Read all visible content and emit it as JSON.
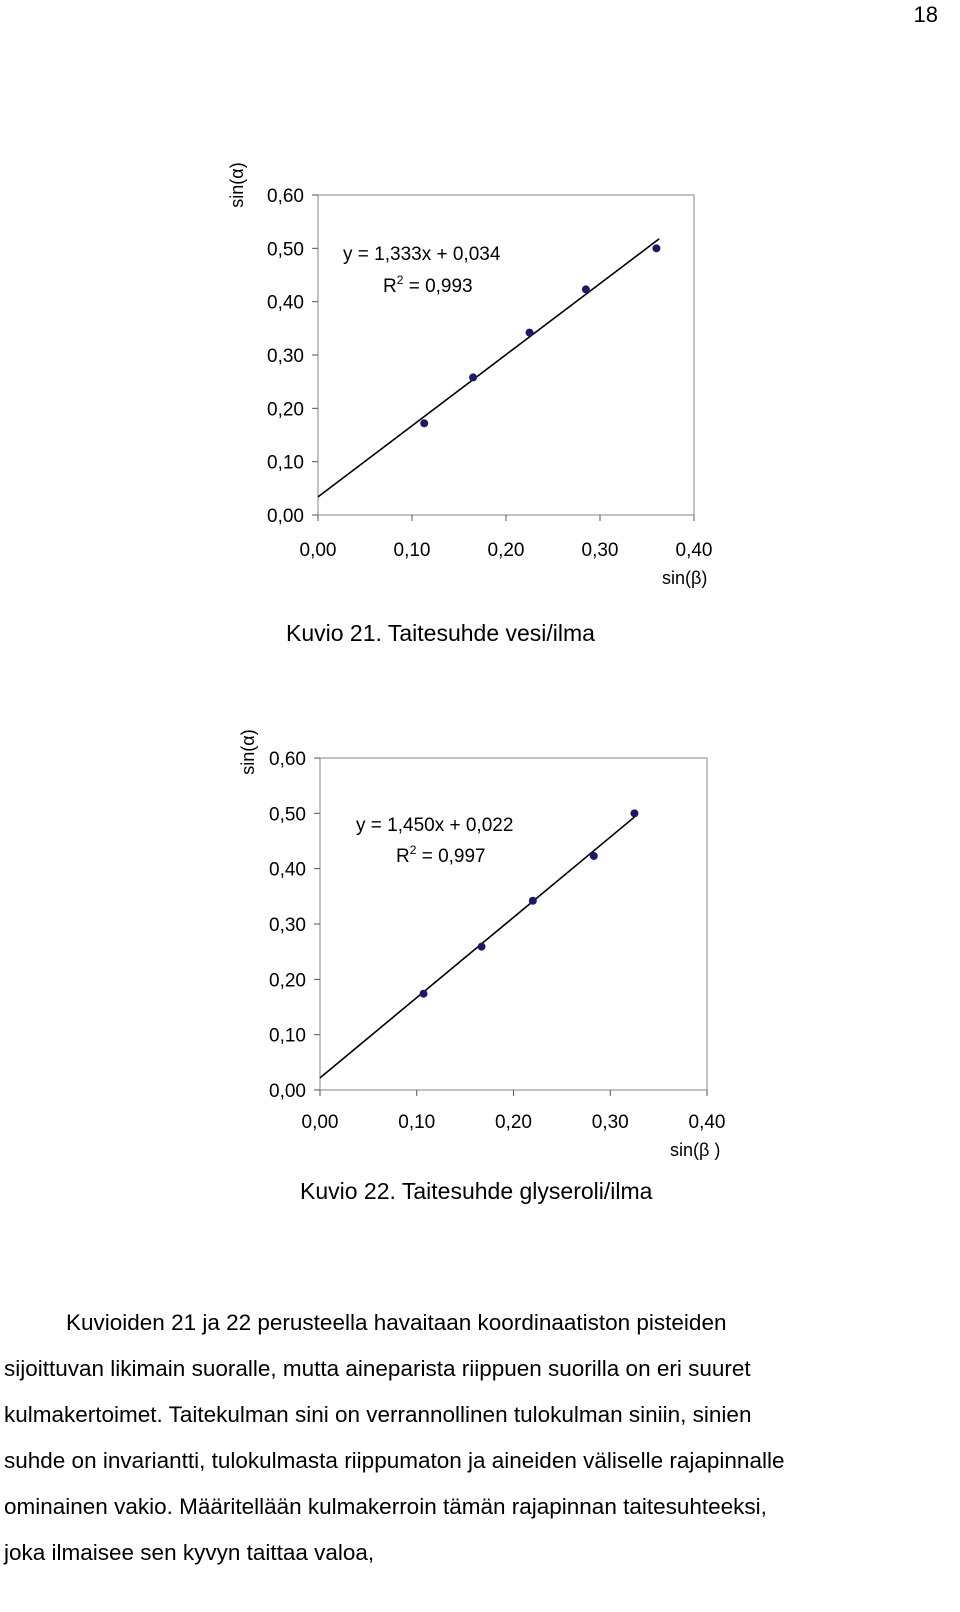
{
  "page_number": "18",
  "figures": [
    {
      "caption": "Kuvio 21. Taitesuhde vesi/ilma",
      "equation": "y = 1,333x + 0,034",
      "r2_prefix": "R",
      "r2_sup": "2",
      "r2_value": " = 0,993",
      "ylabel": "sin(α)",
      "xlabel": "sin(β)"
    },
    {
      "caption": "Kuvio 22. Taitesuhde glyseroli/ilma",
      "equation": "y = 1,450x + 0,022",
      "r2_prefix": "R",
      "r2_sup": "2",
      "r2_value": " = 0,997",
      "ylabel": "sin(α)",
      "xlabel": "sin(β )"
    }
  ],
  "chart_data": [
    {
      "type": "scatter",
      "x": [
        0.113,
        0.165,
        0.225,
        0.285,
        0.36
      ],
      "y": [
        0.172,
        0.258,
        0.342,
        0.423,
        0.5
      ],
      "trendline": {
        "slope": 1.333,
        "intercept": 0.034
      },
      "xlim": [
        0,
        0.4
      ],
      "ylim": [
        0,
        0.6
      ],
      "xticks": [
        "0,00",
        "0,10",
        "0,20",
        "0,30",
        "0,40"
      ],
      "yticks": [
        "0,00",
        "0,10",
        "0,20",
        "0,30",
        "0,40",
        "0,50",
        "0,60"
      ],
      "grid": false,
      "marker_color": "#1a1a66"
    },
    {
      "type": "scatter",
      "x": [
        0.107,
        0.167,
        0.22,
        0.283,
        0.325
      ],
      "y": [
        0.174,
        0.259,
        0.342,
        0.423,
        0.5
      ],
      "trendline": {
        "slope": 1.45,
        "intercept": 0.022
      },
      "xlim": [
        0,
        0.4
      ],
      "ylim": [
        0,
        0.6
      ],
      "xticks": [
        "0,00",
        "0,10",
        "0,20",
        "0,30",
        "0,40"
      ],
      "yticks": [
        "0,00",
        "0,10",
        "0,20",
        "0,30",
        "0,40",
        "0,50",
        "0,60"
      ],
      "grid": false,
      "marker_color": "#1a1a66"
    }
  ],
  "body_lines": [
    "Kuvioiden 21 ja 22 perusteella havaitaan koordinaatiston pisteiden",
    "sijoittuvan likimain suoralle, mutta aineparista riippuen suorilla on eri suuret",
    "kulmakertoimet. Taitekulman sini on verrannollinen tulokulman siniin, sinien",
    "suhde on invariantti, tulokulmasta riippumaton ja aineiden väliselle rajapinnalle",
    "ominainen vakio. Määritellään kulmakerroin tämän rajapinnan taitesuhteeksi,",
    "joka ilmaisee sen kyvyn taittaa valoa,"
  ]
}
